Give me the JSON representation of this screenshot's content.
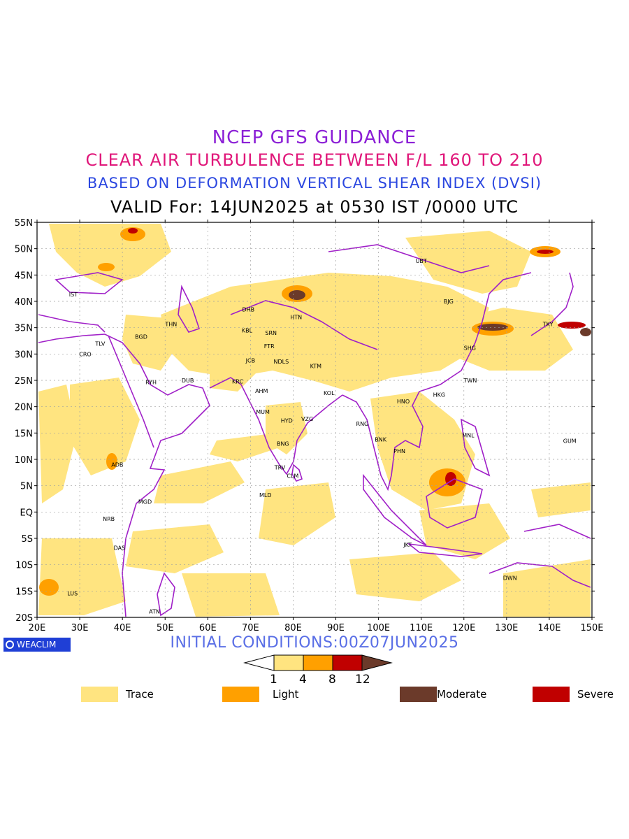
{
  "titles": {
    "line1": "NCEP GFS GUIDANCE",
    "line2": "CLEAR AIR TURBULENCE BETWEEN F/L 160 TO 210",
    "line3": "BASED ON DEFORMATION VERTICAL SHEAR INDEX (DVSI)",
    "line4": "VALID For: 14JUN2025 at 0530 IST /0000 UTC"
  },
  "map": {
    "extent": {
      "lon": [
        20,
        150
      ],
      "lat": [
        -20,
        55
      ]
    },
    "grid": true,
    "lat_labels": [
      "55N",
      "50N",
      "45N",
      "40N",
      "35N",
      "30N",
      "25N",
      "20N",
      "15N",
      "10N",
      "5N",
      "EQ",
      "5S",
      "10S",
      "15S",
      "20S"
    ],
    "lon_labels": [
      "20E",
      "30E",
      "40E",
      "50E",
      "60E",
      "70E",
      "80E",
      "90E",
      "100E",
      "110E",
      "120E",
      "130E",
      "140E",
      "150E"
    ],
    "colors": {
      "trace": "#ffe480",
      "light": "#ffa000",
      "moderate": "#6b3a2a",
      "severe": "#c00000",
      "coast": "#a020c8",
      "grid": "#a0a0a0"
    },
    "stations": [
      {
        "code": "UBT",
        "lon": 110,
        "lat": 47.7
      },
      {
        "code": "IST",
        "lon": 28.5,
        "lat": 41.3
      },
      {
        "code": "DHB",
        "lon": 69.5,
        "lat": 38.5
      },
      {
        "code": "HTN",
        "lon": 80.7,
        "lat": 37
      },
      {
        "code": "BJG",
        "lon": 116.4,
        "lat": 40
      },
      {
        "code": "THN",
        "lon": 51.4,
        "lat": 35.7
      },
      {
        "code": "KBL",
        "lon": 69.2,
        "lat": 34.5
      },
      {
        "code": "SRN",
        "lon": 74.8,
        "lat": 34
      },
      {
        "code": "TKY",
        "lon": 139.7,
        "lat": 35.7
      },
      {
        "code": "TLV",
        "lon": 34.8,
        "lat": 32
      },
      {
        "code": "BGD",
        "lon": 44.4,
        "lat": 33.3
      },
      {
        "code": "CRO",
        "lon": 31.3,
        "lat": 30
      },
      {
        "code": "FTR",
        "lon": 74.4,
        "lat": 31.5
      },
      {
        "code": "SHG",
        "lon": 121.4,
        "lat": 31.2
      },
      {
        "code": "JCB",
        "lon": 70,
        "lat": 28.8
      },
      {
        "code": "NDLS",
        "lon": 77.2,
        "lat": 28.6
      },
      {
        "code": "KTM",
        "lon": 85.3,
        "lat": 27.7
      },
      {
        "code": "RYH",
        "lon": 46.7,
        "lat": 24.7
      },
      {
        "code": "DUB",
        "lon": 55.3,
        "lat": 25
      },
      {
        "code": "KRC",
        "lon": 67,
        "lat": 24.8
      },
      {
        "code": "TWN",
        "lon": 121.5,
        "lat": 25
      },
      {
        "code": "AHM",
        "lon": 72.6,
        "lat": 23
      },
      {
        "code": "KOL",
        "lon": 88.4,
        "lat": 22.6
      },
      {
        "code": "HKG",
        "lon": 114.2,
        "lat": 22.3
      },
      {
        "code": "HNO",
        "lon": 105.8,
        "lat": 21
      },
      {
        "code": "MUM",
        "lon": 72.9,
        "lat": 19
      },
      {
        "code": "HYD",
        "lon": 78.5,
        "lat": 17.4
      },
      {
        "code": "VZG",
        "lon": 83.3,
        "lat": 17.7
      },
      {
        "code": "RNG",
        "lon": 96.2,
        "lat": 16.8
      },
      {
        "code": "MNL",
        "lon": 121,
        "lat": 14.6
      },
      {
        "code": "BNK",
        "lon": 100.5,
        "lat": 13.8
      },
      {
        "code": "GUM",
        "lon": 144.8,
        "lat": 13.5
      },
      {
        "code": "BNG",
        "lon": 77.6,
        "lat": 13
      },
      {
        "code": "PHN",
        "lon": 104.9,
        "lat": 11.6
      },
      {
        "code": "ADB",
        "lon": 38.8,
        "lat": 9
      },
      {
        "code": "TRV",
        "lon": 76.9,
        "lat": 8.5
      },
      {
        "code": "CLM",
        "lon": 79.9,
        "lat": 6.9
      },
      {
        "code": "MLD",
        "lon": 73.5,
        "lat": 3.2
      },
      {
        "code": "MGD",
        "lon": 45.3,
        "lat": 2
      },
      {
        "code": "NRB",
        "lon": 36.8,
        "lat": -1.3
      },
      {
        "code": "DAS",
        "lon": 39.3,
        "lat": -6.8
      },
      {
        "code": "JKT",
        "lon": 106.8,
        "lat": -6.2
      },
      {
        "code": "DWN",
        "lon": 130.8,
        "lat": -12.5
      },
      {
        "code": "LUS",
        "lon": 28.3,
        "lat": -15.4
      },
      {
        "code": "ATN",
        "lon": 47.5,
        "lat": -18.9
      }
    ]
  },
  "initial_conditions": "INITIAL CONDITIONS:00Z07JUN2025",
  "logo": "WEACLIM",
  "colorbar": {
    "levels": [
      "1",
      "4",
      "8",
      "12"
    ],
    "colors": [
      "#ffe480",
      "#ffa000",
      "#c00000"
    ],
    "low_color": "#ffffff",
    "high_color": "#6b3a2a"
  },
  "legend": [
    {
      "label": "Trace",
      "color": "#ffe480"
    },
    {
      "label": "Light",
      "color": "#ffa000"
    },
    {
      "label": "Moderate",
      "color": "#6b3a2a"
    },
    {
      "label": "Severe",
      "color": "#c00000"
    }
  ]
}
